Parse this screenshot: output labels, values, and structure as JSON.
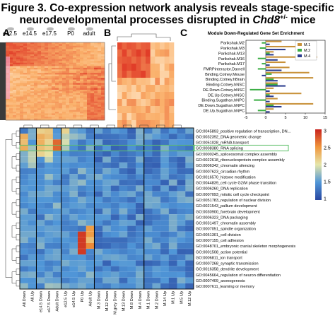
{
  "figure": {
    "title_line1": "Figure 3. Co-expression network analysis reveals stage-specific",
    "title_line2_pre": "neurodevelopmental processes disrupted in ",
    "title_gene": "Chd8",
    "title_sup": "+/-",
    "title_line2_post": " mice"
  },
  "panels": {
    "a": "A",
    "b": "B",
    "c": "C"
  },
  "panel_a": {
    "stages": [
      "e12.5",
      "e14.5",
      "e17.5",
      "P0",
      "adult"
    ]
  },
  "panel_c": {
    "title": "Module Down-Regulated Gene Set Enrichment",
    "row_labels": [
      "Parikshak.M2",
      "Parikshak.M3",
      "Parikshak.M13",
      "Parikshak.M16",
      "Parikshak.M17",
      "FMRPinteractor.Darnell",
      "Binding.Cotney.Mouse",
      "Binding.Cotney.hBrain",
      "Binding.Cotney.hNSC",
      "DE.Down.Cotney.hNSC",
      "DE.Up.Cotney.hNSC",
      "Binding.Sugathan.hNPC",
      "DE.Down.Sugathan.hNPC",
      "DE.Up.Sugathan.hNPC"
    ],
    "legend": [
      {
        "label": "M.1",
        "color": "#c8923a"
      },
      {
        "label": "M.2",
        "color": "#3cae45"
      },
      {
        "label": "M.4",
        "color": "#2c3d8f"
      }
    ],
    "xticks": [
      "-5",
      "0",
      "5",
      "10",
      "15"
    ]
  },
  "chart_data": {
    "type": "bar",
    "title": "Module Down-Regulated Gene Set Enrichment",
    "categories": [
      "Parikshak.M2",
      "Parikshak.M3",
      "Parikshak.M13",
      "Parikshak.M16",
      "Parikshak.M17",
      "FMRPinteractor.Darnell",
      "Binding.Cotney.Mouse",
      "Binding.Cotney.hBrain",
      "Binding.Cotney.hNSC",
      "DE.Down.Cotney.hNSC",
      "DE.Up.Cotney.hNSC",
      "Binding.Sugathan.hNPC",
      "DE.Down.Sugathan.hNPC",
      "DE.Up.Sugathan.hNPC"
    ],
    "series": [
      {
        "name": "M.1",
        "values": [
          4,
          10,
          2,
          13,
          5,
          6,
          11,
          12,
          3,
          2,
          9,
          3,
          12,
          2
        ]
      },
      {
        "name": "M.2",
        "values": [
          -1,
          -1.5,
          1,
          -2,
          -1,
          -2,
          1.5,
          2,
          3,
          -4,
          1,
          -3,
          2,
          -2
        ]
      },
      {
        "name": "M.4",
        "values": [
          1,
          5,
          2,
          3,
          1,
          4,
          -1,
          3,
          5,
          1,
          2,
          1,
          4,
          1
        ]
      }
    ],
    "xlim": [
      -5,
      15
    ],
    "legend_position": "top-right"
  },
  "panel_d": {
    "go_terms": [
      "GO:0045893_positive regulation of transcription, DN...",
      "GO:0032392_DNA geometric change",
      "GO:0051028_mRNA transport",
      "GO:0008380_RNA splicing",
      "GO:0000245_spliceosomal complex assembly",
      "GO:0022618_ribonucleoprotein complex assembly",
      "GO:0006342_chromatin silencing",
      "GO:0007623_circadian rhythm",
      "GO:0016570_histone modification",
      "GO:0044839_cell cycle G2/M phase transition",
      "GO:0006260_DNA replication",
      "GO:0007093_mitotic cell cycle checkpoint",
      "GO:0051783_regulation of nuclear division",
      "GO:0021543_pallium development",
      "GO:0030900_forebrain development",
      "GO:0006323_DNA packaging",
      "GO:0031497_chromatin assembly",
      "GO:0007051_spindle organization",
      "GO:0051301_cell division",
      "GO:0007155_cell adhesion",
      "GO:0048701_embryonic cranial skeleton morphogenesis",
      "GO:0001508_action potential",
      "GO:0006811_ion transport",
      "GO:0007268_synaptic transmission",
      "GO:0016358_dendrite development",
      "GO:0045664_regulation of neuron differentiation",
      "GO:0007409_axonogenesis",
      "GO:0007611_learning or memory"
    ],
    "columns": [
      "All.Down",
      "All.Up",
      "e14.5 Down",
      "e17.5 Down",
      "Adult Down",
      "e12.5 Up",
      "e14.5 Up",
      "P0 Up",
      "Adult Up",
      "M.3 Down",
      "M.12 Down",
      "M.grey Down",
      "M.13 Down",
      "M.8 Down",
      "M.4 Down",
      "M.1 Down",
      "M.2 Down",
      "M.14 Up",
      "M.1 Up",
      "M.5 Up",
      "M.12 Up"
    ],
    "colorbar_ticks": [
      "3",
      "2.5",
      "2",
      "1.5",
      "1"
    ],
    "highlight_row": 3
  }
}
